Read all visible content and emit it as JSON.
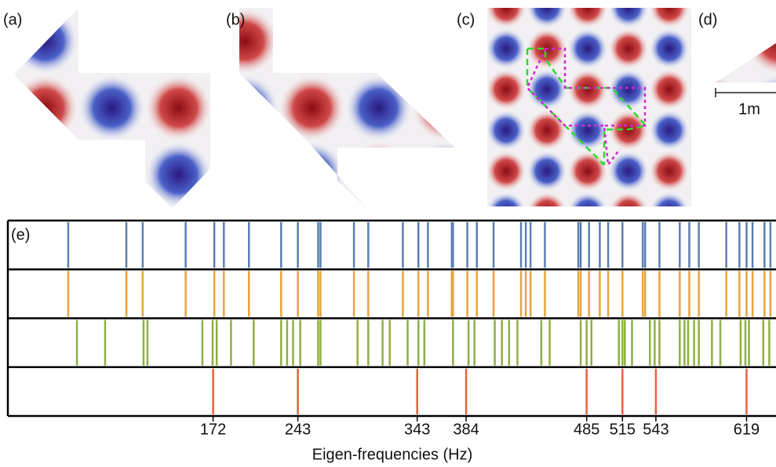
{
  "panel_labels": [
    "(a)",
    "(b)",
    "(c)",
    "(d)"
  ],
  "scale_label": "1m",
  "chart_data": {
    "type": "eventplot",
    "panel_label": "(e)",
    "xlabel": "Eigen-frequencies (Hz)",
    "xlim": [
      0,
      643
    ],
    "xticks": [
      172,
      243,
      343,
      384,
      485,
      515,
      543,
      619
    ],
    "series": [
      {
        "color": "#5b7fb5",
        "values": [
          50.6,
          99.3,
          113,
          149,
          173,
          181,
          202,
          229,
          243,
          260,
          262,
          290,
          302,
          331,
          344,
          352,
          372,
          373,
          385,
          393,
          407,
          430,
          434,
          438,
          450,
          478,
          480,
          487,
          496,
          503,
          515,
          532,
          534,
          546,
          563,
          571,
          579,
          602,
          613,
          619,
          624,
          634,
          639
        ]
      },
      {
        "color": "#e8a33a",
        "values": [
          50.6,
          99.3,
          113,
          149,
          173,
          181,
          202,
          229,
          243,
          260,
          262,
          290,
          302,
          331,
          344,
          352,
          372,
          373,
          385,
          393,
          407,
          430,
          434,
          438,
          450,
          478,
          480,
          487,
          496,
          503,
          515,
          532,
          534,
          546,
          563,
          571,
          579,
          602,
          613,
          619,
          624,
          634,
          639
        ]
      },
      {
        "color": "#8cb043",
        "values": [
          57.9,
          81.5,
          113.7,
          117,
          163,
          171.6,
          175,
          187,
          206,
          229,
          234,
          239,
          245,
          260,
          262,
          293,
          302,
          314,
          320,
          335,
          344,
          349,
          373,
          386,
          391,
          408,
          414,
          420,
          427,
          447,
          454,
          480,
          485,
          489,
          512,
          515,
          517,
          523,
          538,
          542,
          546,
          563,
          567,
          570,
          575,
          579,
          590,
          597,
          614,
          618,
          621,
          633,
          638
        ]
      },
      {
        "color": "#e8603c",
        "values": [
          172,
          243,
          343,
          384,
          485,
          515,
          543,
          619
        ]
      }
    ]
  }
}
